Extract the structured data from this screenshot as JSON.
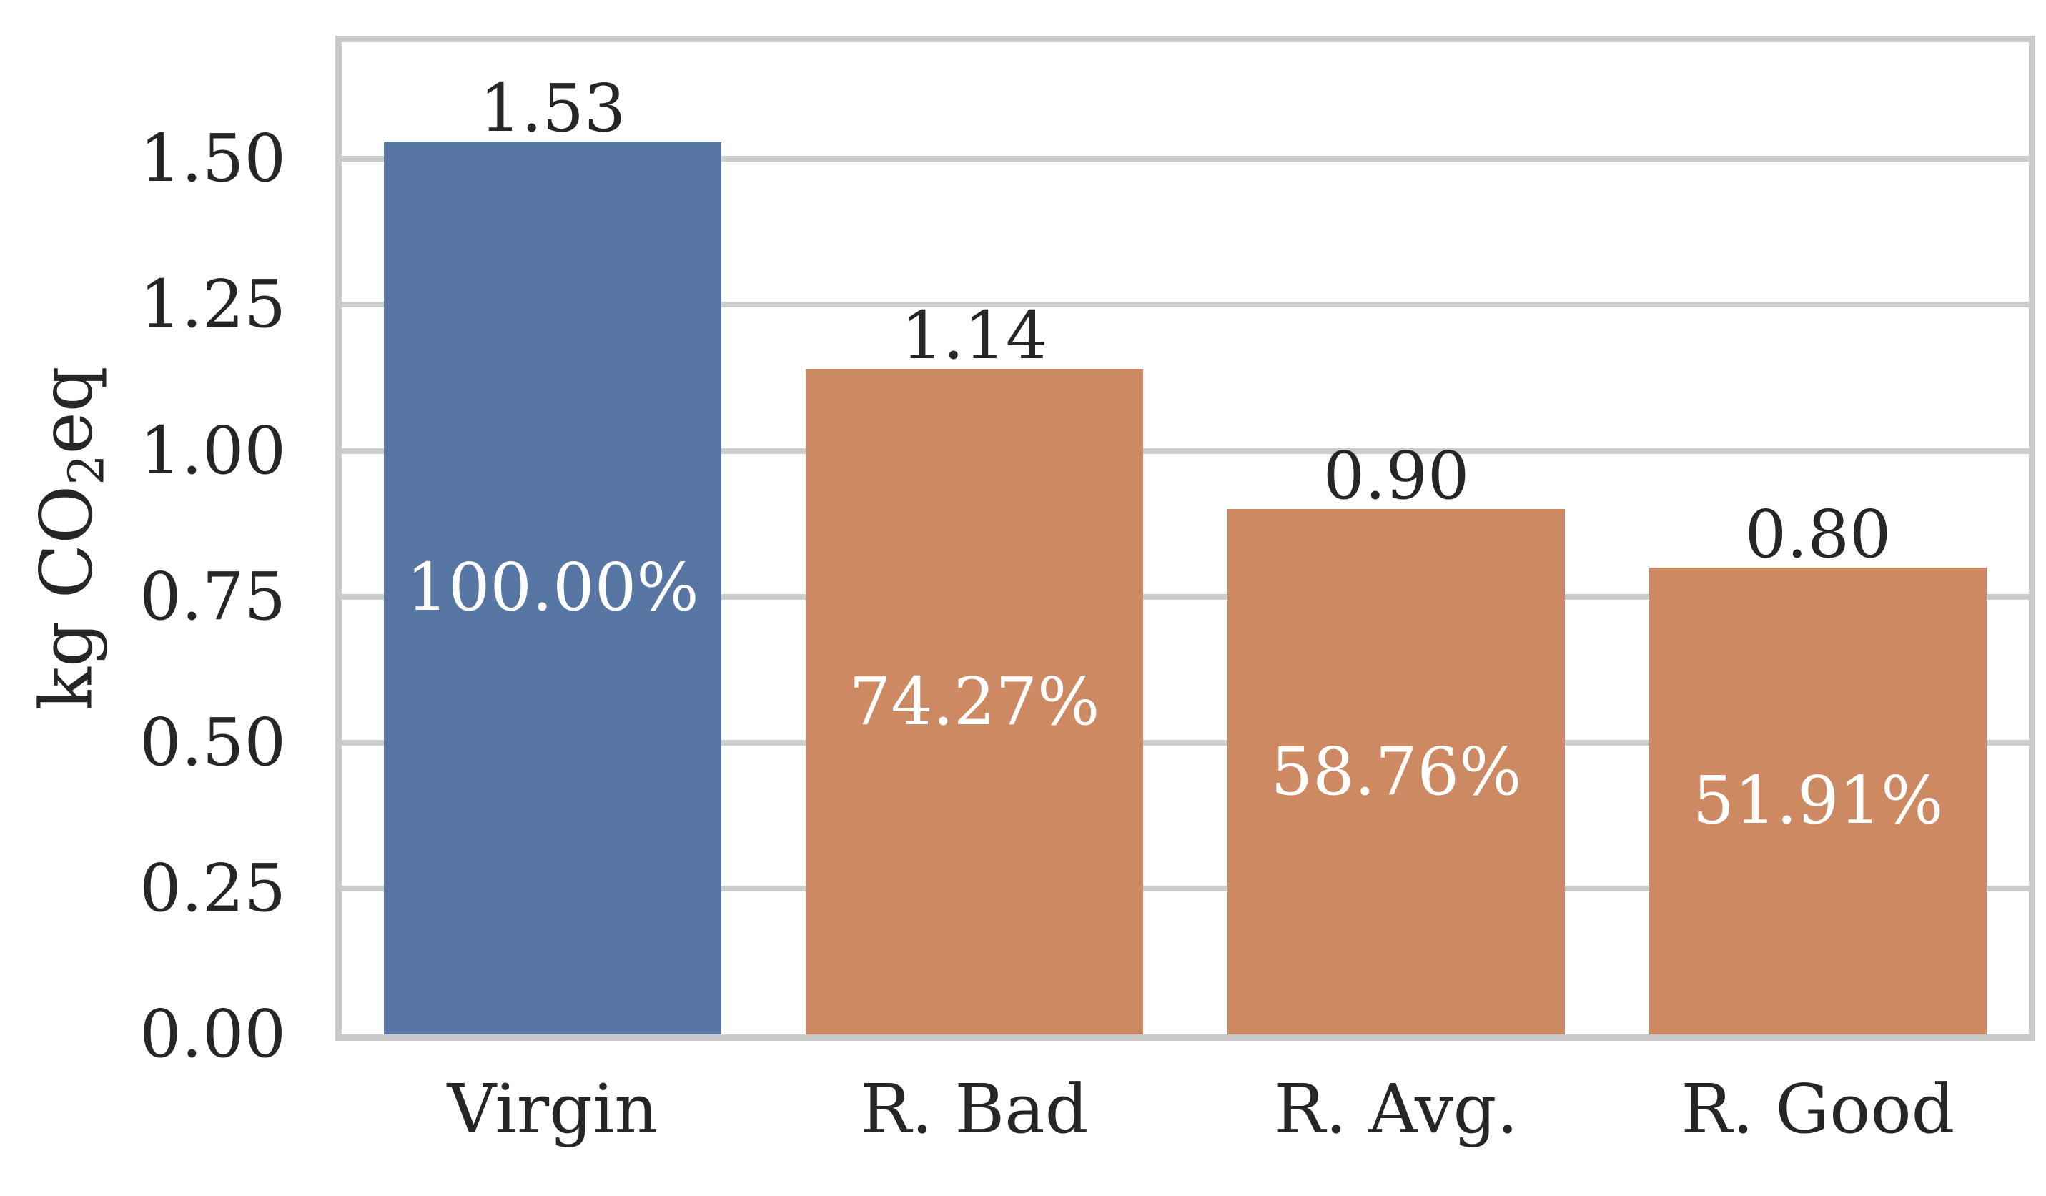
{
  "chart_data": {
    "type": "bar",
    "title": "",
    "xlabel": "",
    "ylabel": "kg CO2eq",
    "ylabel_parts": {
      "pre": "kg CO",
      "sub": "2",
      "post": "eq"
    },
    "categories": [
      "Virgin",
      "R. Bad",
      "R. Avg.",
      "R. Good"
    ],
    "values": [
      1.53,
      1.14,
      0.9,
      0.8
    ],
    "bar_value_labels": [
      "1.53",
      "1.14",
      "0.90",
      "0.80"
    ],
    "bar_percent_labels": [
      "100.00%",
      "74.27%",
      "58.76%",
      "51.91%"
    ],
    "bar_colors": [
      "#5876a4",
      "#cc8962",
      "#cc8962",
      "#cc8962"
    ],
    "ylim": [
      0,
      1.7
    ],
    "yticks": [
      {
        "value": 0.0,
        "label": "0.00"
      },
      {
        "value": 0.25,
        "label": "0.25"
      },
      {
        "value": 0.5,
        "label": "0.50"
      },
      {
        "value": 0.75,
        "label": "0.75"
      },
      {
        "value": 1.0,
        "label": "1.00"
      },
      {
        "value": 1.25,
        "label": "1.25"
      },
      {
        "value": 1.5,
        "label": "1.50"
      }
    ],
    "grid": "horizontal",
    "legend": "none",
    "colors": {
      "grid": "#cccccc",
      "spine": "#c9c9c9",
      "text": "#262626",
      "bar_label_text": "#ffffff",
      "background": "#ffffff"
    }
  }
}
